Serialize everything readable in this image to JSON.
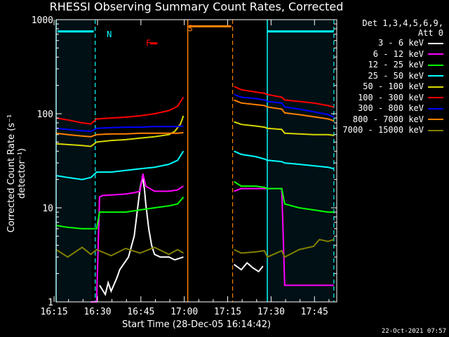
{
  "chart_data": {
    "type": "line",
    "title": "RHESSI Observing Summary Count Rates, Corrected",
    "xlabel": "Start Time (28-Dec-05 16:14:42)",
    "ylabel": "Corrected Count Rate (s⁻¹ detector⁻¹)",
    "yscale": "log",
    "ylim": [
      1,
      1000
    ],
    "y_ticks": [
      "1",
      "10",
      "100",
      "1000"
    ],
    "xlim_minutes": [
      16.0,
      113.0
    ],
    "x_ticks": [
      {
        "label": "16:15",
        "min": 15.3
      },
      {
        "label": "16:30",
        "min": 30.3
      },
      {
        "label": "16:45",
        "min": 45.3
      },
      {
        "label": "17:00",
        "min": 60.3
      },
      {
        "label": "17:15",
        "min": 75.3
      },
      {
        "label": "17:30",
        "min": 90.3
      },
      {
        "label": "17:45",
        "min": 105.3
      }
    ],
    "legend_header": [
      "Det 1,3,4,5,6,9,",
      "Att 0"
    ],
    "series": [
      {
        "name": "3 - 6 keV",
        "color": "#ffffff",
        "segments": [
          {
            "x": [
              31,
              33,
              34,
              35,
              37,
              38,
              41,
              43,
              44,
              45,
              45.5,
              46,
              46.5,
              47,
              48,
              49,
              50,
              52,
              55,
              57,
              60
            ],
            "y": [
              1.5,
              1.2,
              1.6,
              1.3,
              1.8,
              2.2,
              3.0,
              5,
              9,
              16,
              19,
              20,
              16,
              11,
              6,
              4,
              3.2,
              3.0,
              3.0,
              2.8,
              3.0
            ]
          },
          {
            "x": [
              77.5,
              80,
              82,
              84,
              86,
              87.5
            ],
            "y": [
              2.5,
              2.2,
              2.6,
              2.3,
              2.1,
              2.4
            ]
          }
        ]
      },
      {
        "name": "6 - 12 keV",
        "color": "#ff00ff",
        "segments": [
          {
            "x": [
              28,
              30,
              31,
              32,
              40,
              43,
              45,
              46,
              47,
              50,
              55,
              58,
              60
            ],
            "y": [
              1,
              1,
              13,
              13.5,
              14,
              14.5,
              15,
              23,
              17,
              15,
              15,
              15.5,
              17
            ]
          },
          {
            "x": [
              77.5,
              80,
              85,
              88,
              89,
              93,
              94,
              95,
              99,
              112
            ],
            "y": [
              15,
              16,
              16,
              16,
              16,
              16,
              16,
              1.5,
              1.5,
              1.5
            ]
          }
        ]
      },
      {
        "name": "12 - 25 keV",
        "color": "#00ff00",
        "segments": [
          {
            "x": [
              16,
              20,
              25,
              28,
              30,
              31,
              40,
              45,
              50,
              55,
              58,
              60
            ],
            "y": [
              6.5,
              6.2,
              6.0,
              6.0,
              6.0,
              9,
              9,
              9.5,
              10,
              10.5,
              11,
              13
            ]
          },
          {
            "x": [
              77.5,
              80,
              85,
              88,
              89,
              94,
              95,
              100,
              105,
              110,
              112
            ],
            "y": [
              19,
              17,
              17,
              16.5,
              16,
              16,
              11,
              10,
              9.5,
              9,
              9
            ]
          }
        ]
      },
      {
        "name": "25 - 50 keV",
        "color": "#00ffff",
        "segments": [
          {
            "x": [
              16,
              20,
              25,
              28,
              30,
              35,
              40,
              45,
              50,
              55,
              58,
              60
            ],
            "y": [
              22,
              21,
              20,
              21,
              24,
              24,
              25,
              26,
              27,
              29,
              32,
              40
            ]
          },
          {
            "x": [
              77.5,
              80,
              85,
              88,
              89,
              94,
              95,
              100,
              105,
              110,
              112
            ],
            "y": [
              40,
              37,
              35,
              33,
              32,
              31,
              30,
              29,
              28,
              27,
              26
            ]
          }
        ]
      },
      {
        "name": "50 - 100 keV",
        "color": "#d8d800",
        "segments": [
          {
            "x": [
              16,
              20,
              25,
              28,
              30,
              35,
              40,
              45,
              50,
              55,
              57,
              59,
              60
            ],
            "y": [
              48,
              47,
              46,
              45,
              50,
              52,
              53,
              55,
              57,
              60,
              65,
              78,
              95
            ]
          },
          {
            "x": [
              77.5,
              80,
              85,
              88,
              89,
              94,
              95,
              100,
              105,
              110,
              112
            ],
            "y": [
              82,
              77,
              74,
              72,
              70,
              68,
              62,
              61,
              60,
              60,
              59
            ]
          }
        ]
      },
      {
        "name": "100 - 300 keV",
        "color": "#ff0000",
        "segments": [
          {
            "x": [
              16,
              20,
              25,
              28,
              30,
              35,
              40,
              45,
              50,
              55,
              58,
              60
            ],
            "y": [
              90,
              86,
              80,
              78,
              88,
              90,
              92,
              95,
              100,
              108,
              120,
              150
            ]
          },
          {
            "x": [
              77.5,
              80,
              85,
              88,
              89,
              94,
              95,
              100,
              105,
              110,
              112
            ],
            "y": [
              195,
              180,
              170,
              165,
              160,
              150,
              140,
              135,
              130,
              122,
              118
            ]
          }
        ]
      },
      {
        "name": "300 - 800 keV",
        "color": "#0000ff",
        "segments": [
          {
            "x": [
              16,
              20,
              25,
              28,
              30,
              35,
              40,
              45,
              50,
              55,
              58,
              60
            ],
            "y": [
              70,
              68,
              66,
              65,
              70,
              71,
              72,
              72,
              73,
              73,
              73,
              74
            ]
          },
          {
            "x": [
              77.5,
              80,
              85,
              88,
              89,
              94,
              95,
              100,
              105,
              110,
              112
            ],
            "y": [
              160,
              150,
              145,
              140,
              135,
              130,
              118,
              112,
              105,
              98,
              92
            ]
          }
        ]
      },
      {
        "name": "800 - 7000 keV",
        "color": "#ff8000",
        "segments": [
          {
            "x": [
              16,
              20,
              25,
              28,
              30,
              35,
              40,
              45,
              50,
              55,
              58,
              60
            ],
            "y": [
              62,
              60,
              58,
              57,
              60,
              61,
              61,
              62,
              62,
              62,
              62,
              63
            ]
          },
          {
            "x": [
              77.5,
              80,
              85,
              88,
              89,
              94,
              95,
              100,
              105,
              110,
              112
            ],
            "y": [
              140,
              130,
              125,
              122,
              118,
              112,
              102,
              98,
              93,
              88,
              84
            ]
          }
        ]
      },
      {
        "name": "7000 - 15000 keV",
        "color": "#808000",
        "segments": [
          {
            "x": [
              16,
              20,
              25,
              28,
              30,
              35,
              40,
              45,
              50,
              55,
              58,
              60
            ],
            "y": [
              3.6,
              3.0,
              3.8,
              3.2,
              3.6,
              3.1,
              3.7,
              3.3,
              3.8,
              3.2,
              3.6,
              3.3
            ]
          },
          {
            "x": [
              77.5,
              80,
              85,
              88,
              89,
              94,
              95,
              100,
              105,
              107,
              110,
              112
            ],
            "y": [
              3.6,
              3.3,
              3.4,
              3.5,
              3.0,
              3.5,
              3.0,
              3.6,
              3.9,
              4.6,
              4.4,
              4.6
            ]
          }
        ]
      }
    ],
    "annotations": [
      {
        "text": "N",
        "color": "#00ffff",
        "x": 33.5,
        "y": 700
      },
      {
        "text": "F",
        "color": "#ff0000",
        "x": 47,
        "y": 560
      },
      {
        "text": "S",
        "color": "#ff8000",
        "x": 61.5,
        "y": 810
      }
    ],
    "footer_date": "22-Oct-2021 07:57"
  }
}
